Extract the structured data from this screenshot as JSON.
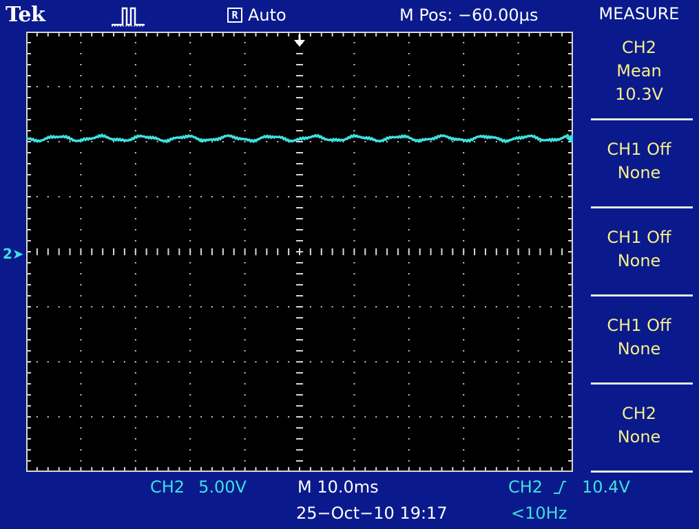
{
  "header": {
    "brand": "Tek",
    "trigger_mode_icon": "R",
    "acquisition_mode": "Auto",
    "main_position": "M Pos: −60.00µs"
  },
  "menu": {
    "title": "MEASURE",
    "items": [
      {
        "line1": "CH2",
        "line2": "Mean",
        "line3": "10.3V"
      },
      {
        "line1": "CH1 Off",
        "line2": "None"
      },
      {
        "line1": "CH1 Off",
        "line2": "None"
      },
      {
        "line1": "CH1 Off",
        "line2": "None"
      },
      {
        "line1": "CH2",
        "line2": "None"
      }
    ]
  },
  "status": {
    "channel": "CH2",
    "volts_per_div": "5.00V",
    "timebase": "M 10.0ms",
    "trigger_source": "CH2",
    "trigger_slope_icon": "rising-edge",
    "trigger_level": "10.4V",
    "datetime": "25−Oct−10 19:17",
    "frequency": "<10Hz"
  },
  "screen": {
    "ground_marker": "2",
    "grid": {
      "h_divs": 10,
      "v_divs": 8
    },
    "trace_color": "#3fe0e0",
    "trace_level_divs_above_ground": 2.06
  },
  "colors": {
    "background": "#0a1a8c",
    "screen": "#000000",
    "channel2": "#3fe0e0",
    "menu_text": "#f8f08a"
  }
}
